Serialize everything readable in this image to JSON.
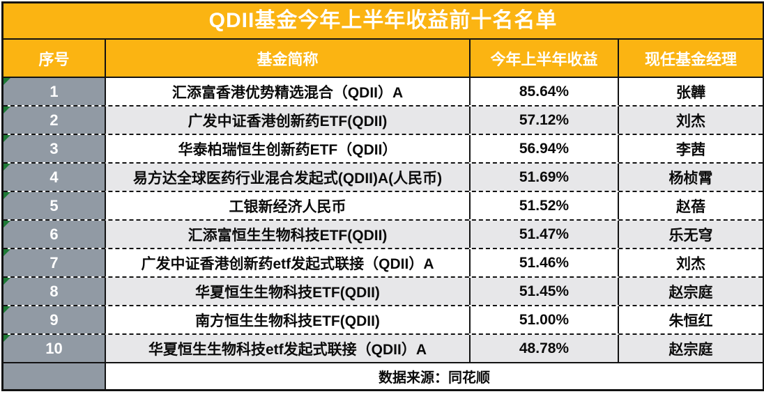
{
  "title": "QDII基金今年上半年收益前十名名单",
  "columns": [
    "序号",
    "基金简称",
    "今年上半年收益",
    "现任基金经理"
  ],
  "rows": [
    {
      "rank": "1",
      "fund": "汇添富香港优势精选混合（QDII）A",
      "return": "85.64%",
      "manager": "张韡"
    },
    {
      "rank": "2",
      "fund": "广发中证香港创新药ETF(QDII)",
      "return": "57.12%",
      "manager": "刘杰"
    },
    {
      "rank": "3",
      "fund": "华泰柏瑞恒生创新药ETF（QDII）",
      "return": "56.94%",
      "manager": "李茜"
    },
    {
      "rank": "4",
      "fund": "易方达全球医药行业混合发起式(QDII)A(人民币)",
      "return": "51.69%",
      "manager": "杨桢霄"
    },
    {
      "rank": "5",
      "fund": "工银新经济人民币",
      "return": "51.52%",
      "manager": "赵蓓"
    },
    {
      "rank": "6",
      "fund": "汇添富恒生生物科技ETF(QDII)",
      "return": "51.47%",
      "manager": "乐无穹"
    },
    {
      "rank": "7",
      "fund": "广发中证香港创新药etf发起式联接（QDII）A",
      "return": "51.46%",
      "manager": "刘杰"
    },
    {
      "rank": "8",
      "fund": "华夏恒生生物科技ETF(QDII)",
      "return": "51.45%",
      "manager": "赵宗庭"
    },
    {
      "rank": "9",
      "fund": "南方恒生生物科技ETF(QDII)",
      "return": "51.00%",
      "manager": "朱恒红"
    },
    {
      "rank": "10",
      "fund": "华夏恒生生物科技etf发起式联接（QDII）A",
      "return": "48.78%",
      "manager": "赵宗庭"
    }
  ],
  "footer": {
    "source": "数据来源：同花顺"
  },
  "colors": {
    "header_bg": "#FBB412",
    "title_text": "#FFFFFF",
    "header_text": "#FFFFFF",
    "rank_bg": "#919AA4",
    "rank_text": "#FFFFFF",
    "zebra_bg": "#E7E7E9",
    "row_bg": "#FFFFFF",
    "body_text": "#0B0B0B",
    "border": "#121212",
    "corner_marker": "#1E7A36"
  }
}
